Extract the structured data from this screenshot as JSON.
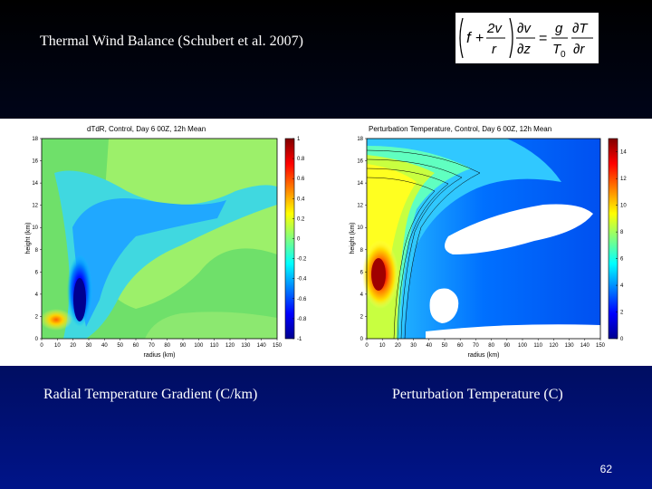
{
  "slide": {
    "title": "Thermal Wind Balance (Schubert et al. 2007)",
    "page_number": "62",
    "caption_left": "Radial Temperature Gradient (C/km)",
    "caption_right": "Perturbation Temperature (C)"
  },
  "equation": {
    "f": "f",
    "plus": "+",
    "num_2v": "2v",
    "den_r": "r",
    "partial_v": "∂v",
    "partial_z": "∂z",
    "equals": "=",
    "g": "g",
    "T0_T": "T",
    "T0_sub": "0",
    "partial_T": "∂T",
    "partial_r": "∂r"
  },
  "chart_data": [
    {
      "type": "heatmap",
      "title": "dTdR, Control, Day 6 00Z, 12h Mean",
      "xlabel": "radius (km)",
      "ylabel": "height (km)",
      "xlim": [
        0,
        150
      ],
      "ylim": [
        0,
        18
      ],
      "x_ticks": [
        "0",
        "10",
        "20",
        "30",
        "40",
        "50",
        "60",
        "70",
        "80",
        "90",
        "100",
        "110",
        "120",
        "130",
        "140",
        "150"
      ],
      "y_ticks": [
        "0",
        "2",
        "4",
        "6",
        "8",
        "10",
        "12",
        "14",
        "16",
        "18"
      ],
      "colorbar": {
        "min": -1,
        "max": 1,
        "ticks": [
          "-1",
          "-0.8",
          "-0.6",
          "-0.4",
          "-0.2",
          "0",
          "0.2",
          "0.4",
          "0.6",
          "0.8",
          "1"
        ]
      },
      "features": [
        {
          "label": "negative core",
          "x": 22,
          "y": 3.5,
          "value": -1.0
        },
        {
          "label": "positive surface",
          "x": 8,
          "y": 1.8,
          "value": 0.6
        }
      ]
    },
    {
      "type": "heatmap",
      "title": "Perturbation Temperature, Control, Day 6 00Z, 12h Mean",
      "xlabel": "radius (km)",
      "ylabel": "height (km)",
      "xlim": [
        0,
        150
      ],
      "ylim": [
        0,
        18
      ],
      "x_ticks": [
        "0",
        "10",
        "20",
        "30",
        "40",
        "50",
        "60",
        "70",
        "80",
        "90",
        "100",
        "110",
        "120",
        "130",
        "140",
        "150"
      ],
      "y_ticks": [
        "0",
        "2",
        "4",
        "6",
        "8",
        "10",
        "12",
        "14",
        "16",
        "18"
      ],
      "colorbar": {
        "min": 0,
        "max": 15,
        "ticks": [
          "0",
          "2",
          "4",
          "6",
          "8",
          "10",
          "12",
          "14"
        ]
      },
      "features": [
        {
          "label": "warm core",
          "x": 15,
          "y": 6,
          "value": 15
        },
        {
          "label": "upper warm region",
          "x": 18,
          "y": 14,
          "value": 10
        }
      ]
    }
  ]
}
